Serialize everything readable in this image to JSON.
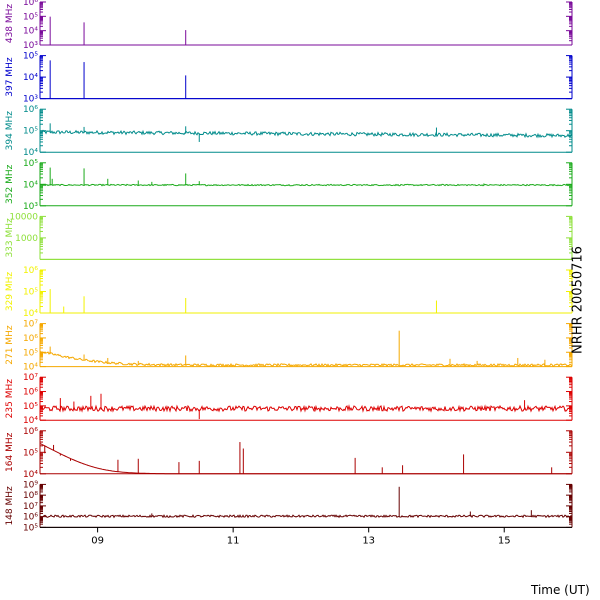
{
  "chart_data": {
    "type": "line",
    "title": "NRHR 20050716",
    "xlabel": "Time (UT)",
    "x_range": [
      8.15,
      16.0
    ],
    "x_ticks": [
      9,
      11,
      13,
      15
    ],
    "x_tick_labels": [
      "09",
      "11",
      "13",
      "15"
    ],
    "y_scale": "log",
    "panels": [
      {
        "name": "438 MHz",
        "color": "#7a0a9a",
        "ylim": [
          1000,
          1000000
        ],
        "ticks": [
          {
            "v": 1000,
            "label": "10³"
          },
          {
            "v": 10000,
            "label": "10⁴"
          },
          {
            "v": 100000,
            "label": "10⁵"
          },
          {
            "v": 1000000,
            "label": "10⁶"
          }
        ],
        "baseline": 1000,
        "noise": 0.0,
        "spikes": [
          {
            "t": 8.3,
            "v": 95000
          },
          {
            "t": 8.8,
            "v": 38000
          },
          {
            "t": 10.3,
            "v": 11000
          }
        ]
      },
      {
        "name": "397 MHz",
        "color": "#0000cc",
        "ylim": [
          1000,
          100000
        ],
        "ticks": [
          {
            "v": 1000,
            "label": "10³"
          },
          {
            "v": 10000,
            "label": "10⁴"
          },
          {
            "v": 100000,
            "label": "10⁵"
          }
        ],
        "baseline": 1000,
        "noise": 0.0,
        "spikes": [
          {
            "t": 8.3,
            "v": 60000
          },
          {
            "t": 8.8,
            "v": 50000
          },
          {
            "t": 10.3,
            "v": 12000
          }
        ]
      },
      {
        "name": "394 MHz",
        "color": "#008b8b",
        "ylim": [
          10000,
          1000000
        ],
        "ticks": [
          {
            "v": 10000,
            "label": "10⁴"
          },
          {
            "v": 100000,
            "label": "10⁵"
          },
          {
            "v": 1000000,
            "label": "10⁶"
          }
        ],
        "baseline": 80000,
        "baseline_end": 55000,
        "noise": 0.08,
        "spikes": [
          {
            "t": 8.3,
            "v": 220000
          },
          {
            "t": 8.8,
            "v": 150000
          },
          {
            "t": 10.3,
            "v": 160000
          },
          {
            "t": 10.5,
            "v": 30000
          },
          {
            "t": 14.0,
            "v": 140000
          }
        ]
      },
      {
        "name": "352 MHz",
        "color": "#1aaa1a",
        "ylim": [
          1000,
          100000
        ],
        "ticks": [
          {
            "v": 1000,
            "label": "10³"
          },
          {
            "v": 10000,
            "label": "10⁴"
          },
          {
            "v": 100000,
            "label": "10⁵"
          }
        ],
        "baseline": 9000,
        "noise": 0.03,
        "spikes": [
          {
            "t": 8.3,
            "v": 60000
          },
          {
            "t": 8.33,
            "v": 18000
          },
          {
            "t": 8.8,
            "v": 55000
          },
          {
            "t": 9.15,
            "v": 18000
          },
          {
            "t": 9.6,
            "v": 15000
          },
          {
            "t": 9.8,
            "v": 13000
          },
          {
            "t": 10.3,
            "v": 32000
          },
          {
            "t": 10.5,
            "v": 14000
          },
          {
            "t": 14.7,
            "v": 11000
          }
        ]
      },
      {
        "name": "333 MHz",
        "color": "#8ee03a",
        "ylim": [
          100,
          10000
        ],
        "ticks": [
          {
            "v": 1000,
            "label": "1000"
          },
          {
            "v": 10000,
            "label": "10000"
          }
        ],
        "baseline": 100,
        "noise": 0.0,
        "spikes": []
      },
      {
        "name": "329 MHz",
        "color": "#f2f200",
        "ylim": [
          10000,
          1000000
        ],
        "ticks": [
          {
            "v": 10000,
            "label": "10⁴"
          },
          {
            "v": 100000,
            "label": "10⁵"
          },
          {
            "v": 1000000,
            "label": "10⁶"
          }
        ],
        "baseline": 10000,
        "noise": 0.0,
        "spikes": [
          {
            "t": 8.3,
            "v": 130000
          },
          {
            "t": 8.5,
            "v": 20000
          },
          {
            "t": 8.8,
            "v": 60000
          },
          {
            "t": 10.3,
            "v": 50000
          },
          {
            "t": 14.0,
            "v": 38000
          }
        ]
      },
      {
        "name": "271 MHz",
        "color": "#f5a800",
        "ylim": [
          10000,
          10000000
        ],
        "ticks": [
          {
            "v": 10000,
            "label": "10⁴"
          },
          {
            "v": 100000,
            "label": "10⁵"
          },
          {
            "v": 1000000,
            "label": "10⁶"
          },
          {
            "v": 10000000,
            "label": "10⁷"
          }
        ],
        "baseline": 12000,
        "noise": 0.08,
        "decay": {
          "amp": 8,
          "tau": 0.35
        },
        "spikes": [
          {
            "t": 8.3,
            "v": 250000
          },
          {
            "t": 8.8,
            "v": 70000
          },
          {
            "t": 9.15,
            "v": 40000
          },
          {
            "t": 9.6,
            "v": 25000
          },
          {
            "t": 10.3,
            "v": 60000
          },
          {
            "t": 13.45,
            "v": 3200000
          },
          {
            "t": 14.2,
            "v": 35000
          },
          {
            "t": 14.6,
            "v": 25000
          },
          {
            "t": 15.2,
            "v": 40000
          },
          {
            "t": 15.6,
            "v": 30000
          }
        ]
      },
      {
        "name": "235 MHz",
        "color": "#dd0000",
        "ylim": [
          10000,
          10000000
        ],
        "ticks": [
          {
            "v": 10000,
            "label": "10⁴"
          },
          {
            "v": 100000,
            "label": "10⁵"
          },
          {
            "v": 1000000,
            "label": "10⁶"
          },
          {
            "v": 10000000,
            "label": "10⁷"
          }
        ],
        "baseline": 55000,
        "noise": 0.18,
        "spikes": [
          {
            "t": 8.45,
            "v": 350000
          },
          {
            "t": 8.65,
            "v": 200000
          },
          {
            "t": 8.9,
            "v": 500000
          },
          {
            "t": 9.05,
            "v": 700000
          },
          {
            "t": 10.5,
            "v": 12000
          },
          {
            "t": 12.2,
            "v": 90000
          },
          {
            "t": 14.8,
            "v": 60000
          },
          {
            "t": 15.3,
            "v": 250000
          },
          {
            "t": 15.6,
            "v": 90000
          },
          {
            "t": 15.9,
            "v": 40000
          }
        ]
      },
      {
        "name": "164 MHz",
        "color": "#aa0000",
        "ylim": [
          10000,
          1000000
        ],
        "ticks": [
          {
            "v": 10000,
            "label": "10⁴"
          },
          {
            "v": 100000,
            "label": "10⁵"
          },
          {
            "v": 1000000,
            "label": "10⁶"
          }
        ],
        "baseline": 10000,
        "noise": 0.0,
        "decay": {
          "amp": 25,
          "tau": 0.25
        },
        "spikes": [
          {
            "t": 8.22,
            "v": 90000
          },
          {
            "t": 8.35,
            "v": 220000
          },
          {
            "t": 8.45,
            "v": 70000
          },
          {
            "t": 8.6,
            "v": 40000
          },
          {
            "t": 8.8,
            "v": 30000
          },
          {
            "t": 9.3,
            "v": 45000
          },
          {
            "t": 9.6,
            "v": 50000
          },
          {
            "t": 10.2,
            "v": 35000
          },
          {
            "t": 10.5,
            "v": 40000
          },
          {
            "t": 11.1,
            "v": 300000
          },
          {
            "t": 11.15,
            "v": 150000
          },
          {
            "t": 12.8,
            "v": 55000
          },
          {
            "t": 13.2,
            "v": 20000
          },
          {
            "t": 13.5,
            "v": 25000
          },
          {
            "t": 14.4,
            "v": 80000
          },
          {
            "t": 15.7,
            "v": 20000
          }
        ]
      },
      {
        "name": "148 MHz",
        "color": "#660000",
        "ylim": [
          100000,
          1000000000
        ],
        "ticks": [
          {
            "v": 100000,
            "label": "10⁵"
          },
          {
            "v": 1000000,
            "label": "10⁶"
          },
          {
            "v": 10000000,
            "label": "10⁷"
          },
          {
            "v": 100000000,
            "label": "10⁸"
          },
          {
            "v": 1000000000,
            "label": "10⁹"
          }
        ],
        "baseline": 1000000,
        "noise": 0.1,
        "spikes": [
          {
            "t": 9.8,
            "v": 2000000
          },
          {
            "t": 13.45,
            "v": 600000000
          },
          {
            "t": 14.5,
            "v": 3000000
          },
          {
            "t": 15.4,
            "v": 4000000
          }
        ]
      }
    ]
  }
}
